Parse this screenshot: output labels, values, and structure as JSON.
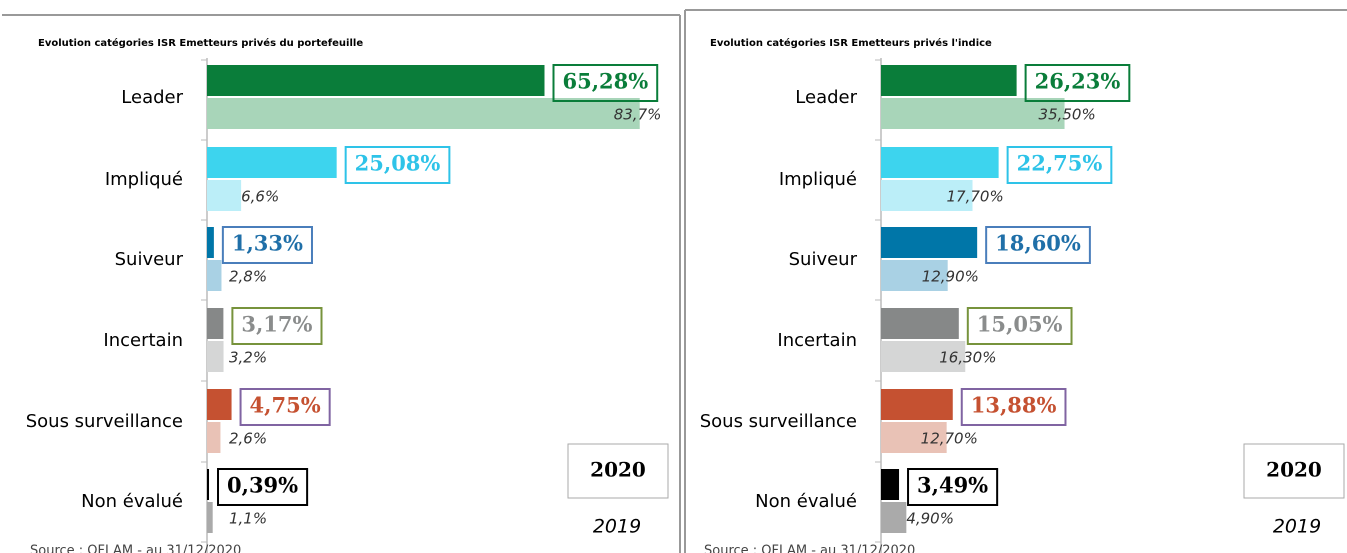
{
  "chart_data": [
    {
      "type": "bar",
      "orientation": "horizontal",
      "title": "Evolution catégories ISR Emetteurs privés du portefeuille",
      "source": "Source : OFI AM - au 31/12/2020",
      "categories": [
        "Leader",
        "Impliqué",
        "Suiveur",
        "Incertain",
        "Sous surveillance",
        "Non évalué"
      ],
      "xlim": [
        0,
        90
      ],
      "series": [
        {
          "name": "2020",
          "values": [
            65.28,
            25.08,
            1.33,
            3.17,
            4.75,
            0.39
          ],
          "value_labels": [
            "65,28%",
            "25,08%",
            "1,33%",
            "3,17%",
            "4,75%",
            "0,39%"
          ],
          "colors": [
            "#0a7d3a",
            "#3dd4ee",
            "#0076a8",
            "#868888",
            "#c55131",
            "#000000"
          ],
          "label_colors": [
            "#0a7d3a",
            "#2ec3e8",
            "#1f6fa8",
            "#8a8c8c",
            "#c55131",
            "#000000"
          ],
          "label_border_colors": [
            "#0a7d3a",
            "#2ec3e8",
            "#4a7ebb",
            "#77933c",
            "#8064a2",
            "#000000"
          ]
        },
        {
          "name": "2019",
          "values": [
            83.7,
            6.6,
            2.8,
            3.2,
            2.6,
            1.1
          ],
          "value_labels": [
            "83,7%",
            "6,6%",
            "2,8%",
            "3,2%",
            "2,6%",
            "1,1%"
          ],
          "colors": [
            "#a8d5b9",
            "#bbeef8",
            "#a9d1e4",
            "#d5d6d6",
            "#e9c2b6",
            "#aaaaaa"
          ]
        }
      ]
    },
    {
      "type": "bar",
      "orientation": "horizontal",
      "title": "Evolution catégories ISR Emetteurs privés l'indice",
      "source": "Source : OFI AM - au 31/12/2020",
      "categories": [
        "Leader",
        "Impliqué",
        "Suiveur",
        "Incertain",
        "Sous surveillance",
        "Non évalué"
      ],
      "xlim": [
        0,
        90
      ],
      "series": [
        {
          "name": "2020",
          "values": [
            26.23,
            22.75,
            18.6,
            15.05,
            13.88,
            3.49
          ],
          "value_labels": [
            "26,23%",
            "22,75%",
            "18,60%",
            "15,05%",
            "13,88%",
            "3,49%"
          ],
          "colors": [
            "#0a7d3a",
            "#3dd4ee",
            "#0076a8",
            "#868888",
            "#c55131",
            "#000000"
          ],
          "label_colors": [
            "#0a7d3a",
            "#2ec3e8",
            "#1f6fa8",
            "#8a8c8c",
            "#c55131",
            "#000000"
          ],
          "label_border_colors": [
            "#0a7d3a",
            "#2ec3e8",
            "#4a7ebb",
            "#77933c",
            "#8064a2",
            "#000000"
          ]
        },
        {
          "name": "2019",
          "values": [
            35.5,
            17.7,
            12.9,
            16.3,
            12.7,
            4.9
          ],
          "value_labels": [
            "35,50%",
            "17,70%",
            "12,90%",
            "16,30%",
            "12,70%",
            "4,90%"
          ],
          "colors": [
            "#a8d5b9",
            "#bbeef8",
            "#a9d1e4",
            "#d5d6d6",
            "#e9c2b6",
            "#aaaaaa"
          ]
        }
      ]
    }
  ]
}
